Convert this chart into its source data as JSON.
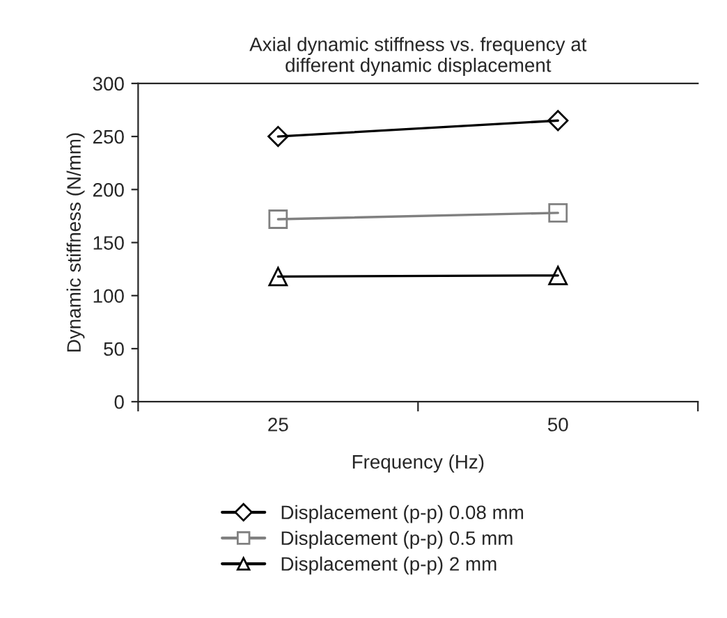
{
  "chart_data": {
    "type": "line",
    "title": "Axial dynamic stiffness vs. frequency at\ndifferent dynamic displacement",
    "xlabel": "Frequency (Hz)",
    "ylabel": "Dynamic stiffness (N/mm)",
    "categories": [
      "25",
      "50"
    ],
    "series": [
      {
        "name": "Displacement (p-p) 0.08 mm",
        "color": "#000000",
        "marker": "diamond",
        "values": [
          250,
          265
        ]
      },
      {
        "name": "Displacement (p-p) 0.5 mm",
        "color": "#808080",
        "marker": "square",
        "values": [
          172,
          178
        ]
      },
      {
        "name": "Displacement (p-p) 2 mm",
        "color": "#000000",
        "marker": "triangle",
        "values": [
          118,
          119
        ]
      }
    ],
    "ylim": [
      0,
      300
    ],
    "yticks": [
      0,
      50,
      100,
      150,
      200,
      250,
      300
    ],
    "grid": false,
    "legend": "bottom",
    "line_style": "solid"
  }
}
